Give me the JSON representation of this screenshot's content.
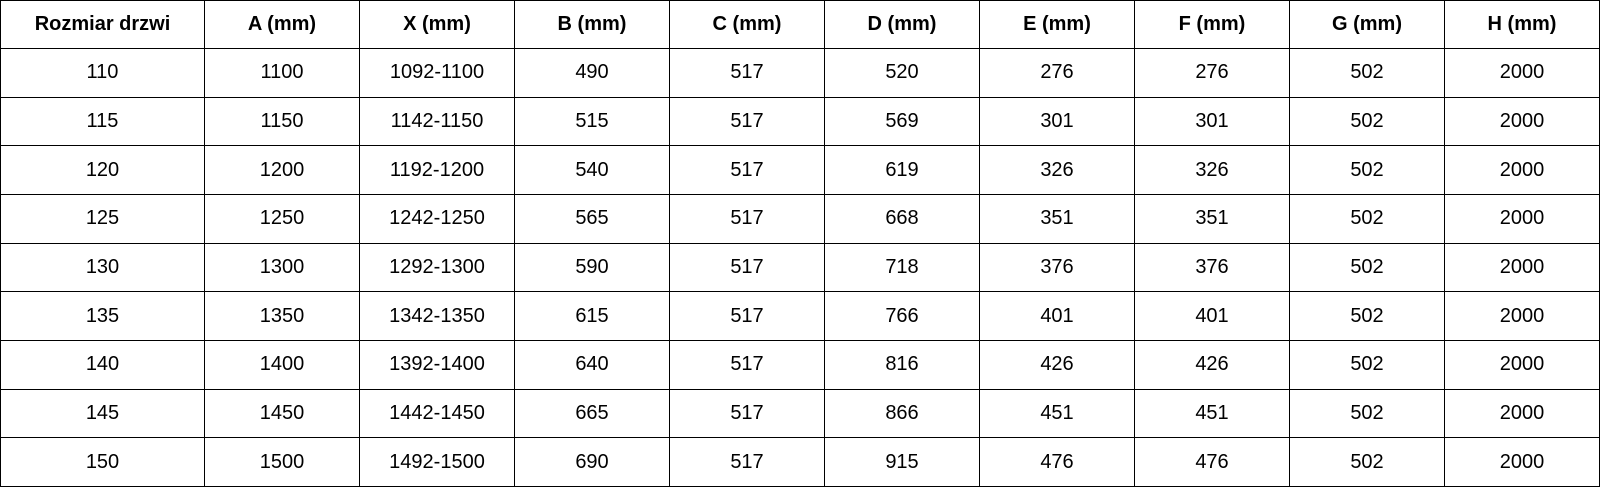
{
  "table": {
    "header": [
      "Rozmiar drzwi",
      "A (mm)",
      "X (mm)",
      "B (mm)",
      "C (mm)",
      "D (mm)",
      "E (mm)",
      "F (mm)",
      "G (mm)",
      "H (mm)"
    ],
    "rows": [
      [
        "110",
        "1100",
        "1092-1100",
        "490",
        "517",
        "520",
        "276",
        "276",
        "502",
        "2000"
      ],
      [
        "115",
        "1150",
        "1142-1150",
        "515",
        "517",
        "569",
        "301",
        "301",
        "502",
        "2000"
      ],
      [
        "120",
        "1200",
        "1192-1200",
        "540",
        "517",
        "619",
        "326",
        "326",
        "502",
        "2000"
      ],
      [
        "125",
        "1250",
        "1242-1250",
        "565",
        "517",
        "668",
        "351",
        "351",
        "502",
        "2000"
      ],
      [
        "130",
        "1300",
        "1292-1300",
        "590",
        "517",
        "718",
        "376",
        "376",
        "502",
        "2000"
      ],
      [
        "135",
        "1350",
        "1342-1350",
        "615",
        "517",
        "766",
        "401",
        "401",
        "502",
        "2000"
      ],
      [
        "140",
        "1400",
        "1392-1400",
        "640",
        "517",
        "816",
        "426",
        "426",
        "502",
        "2000"
      ],
      [
        "145",
        "1450",
        "1442-1450",
        "665",
        "517",
        "866",
        "451",
        "451",
        "502",
        "2000"
      ],
      [
        "150",
        "1500",
        "1492-1500",
        "690",
        "517",
        "915",
        "476",
        "476",
        "502",
        "2000"
      ]
    ]
  }
}
